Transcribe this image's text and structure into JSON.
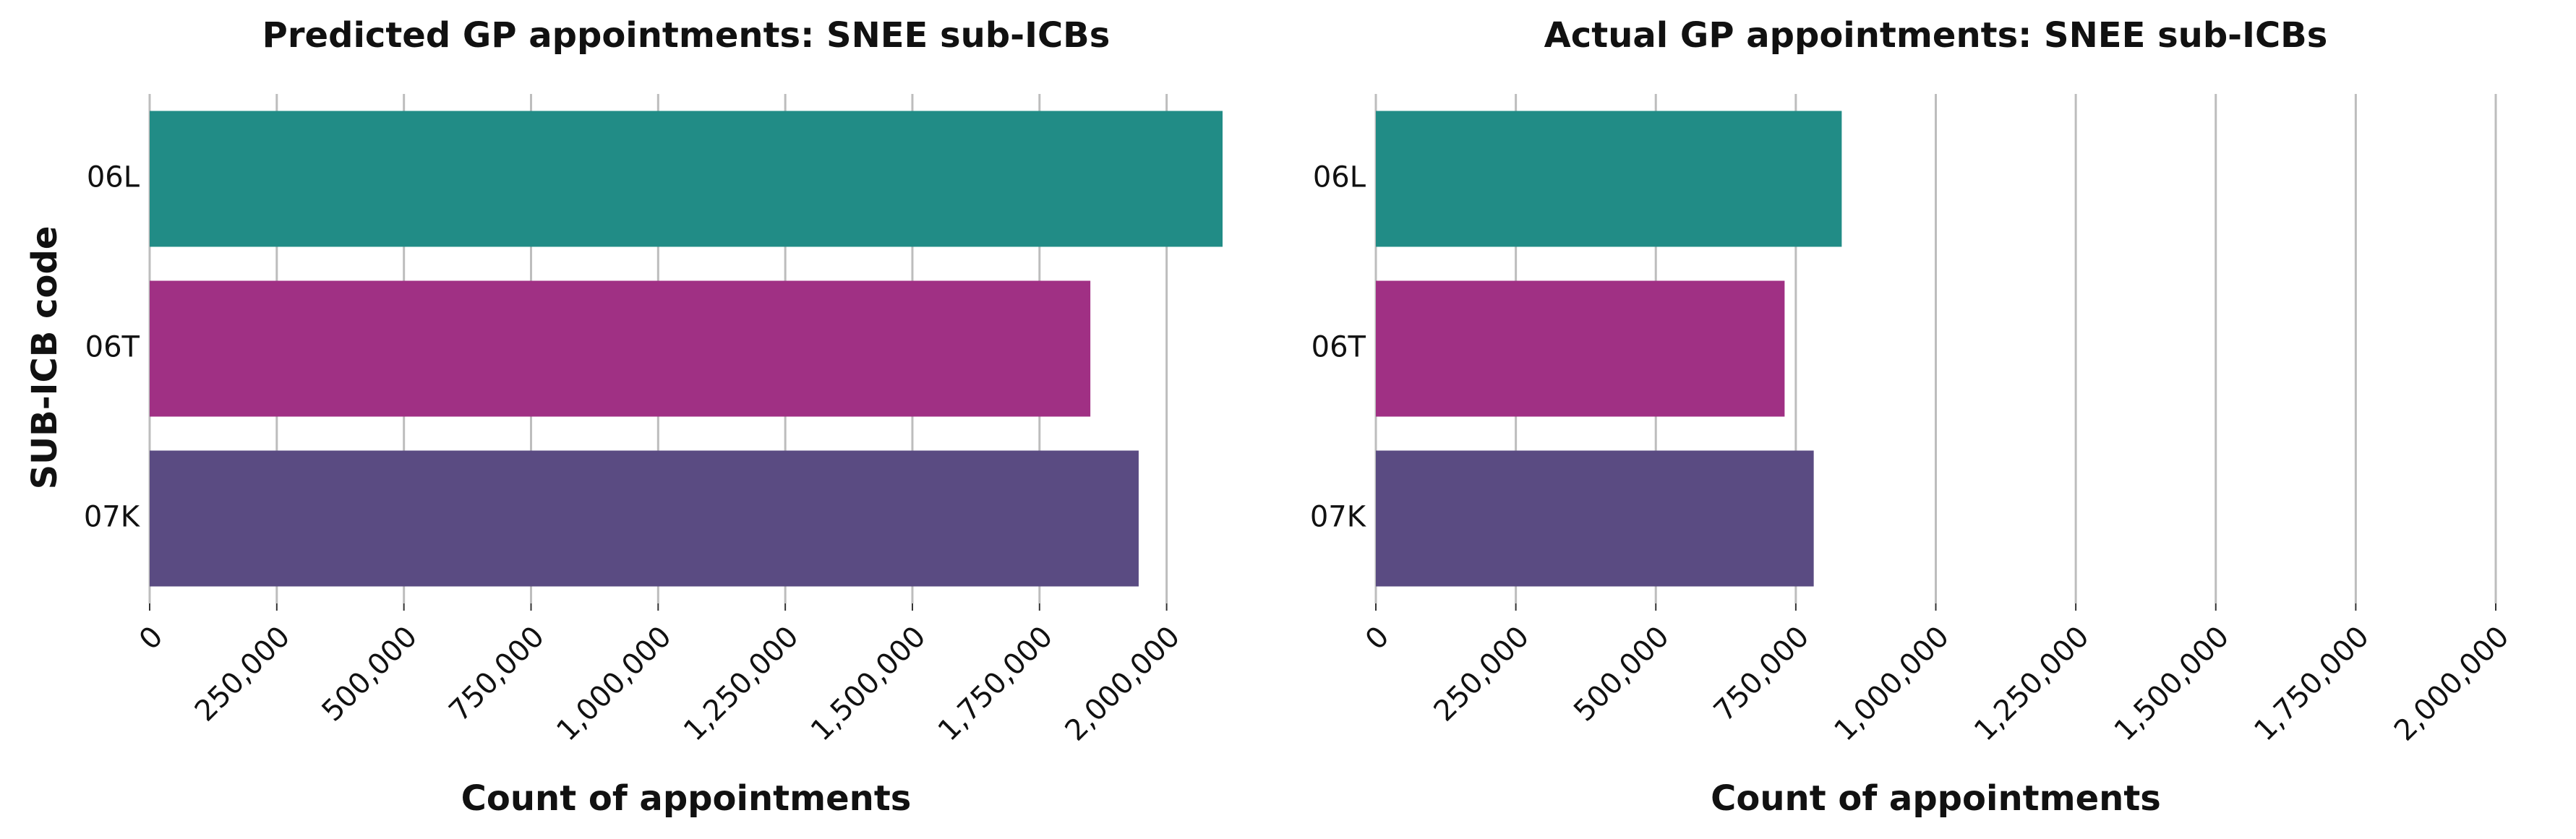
{
  "y_axis_label": "SUB-ICB code",
  "chart_data": [
    {
      "type": "bar",
      "orientation": "horizontal",
      "title": "Predicted GP appointments: SNEE sub-ICBs",
      "xlabel": "Count of appointments",
      "ylabel": "SUB-ICB code",
      "categories": [
        "06L",
        "06T",
        "07K"
      ],
      "values": [
        2110000,
        1850000,
        1945000
      ],
      "colors": [
        "#218c86",
        "#a03084",
        "#5a4b82"
      ],
      "xlim": [
        0,
        2110000
      ],
      "xticks": [
        0,
        250000,
        500000,
        750000,
        1000000,
        1250000,
        1500000,
        1750000,
        2000000
      ],
      "xtick_labels": [
        "0",
        "250,000",
        "500,000",
        "750,000",
        "1,000,000",
        "1,250,000",
        "1,500,000",
        "1,750,000",
        "2,000,000"
      ],
      "grid": "vertical",
      "legend": "none"
    },
    {
      "type": "bar",
      "orientation": "horizontal",
      "title": "Actual GP appointments: SNEE sub-ICBs",
      "xlabel": "Count of appointments",
      "ylabel": "",
      "categories": [
        "06L",
        "06T",
        "07K"
      ],
      "values": [
        832000,
        730000,
        782000
      ],
      "colors": [
        "#218c86",
        "#a03084",
        "#5a4b82"
      ],
      "xlim": [
        0,
        2000000
      ],
      "xticks": [
        0,
        250000,
        500000,
        750000,
        1000000,
        1250000,
        1500000,
        1750000,
        2000000
      ],
      "xtick_labels": [
        "0",
        "250,000",
        "500,000",
        "750,000",
        "1,000,000",
        "1,250,000",
        "1,500,000",
        "1,750,000",
        "2,000,000"
      ],
      "grid": "vertical",
      "legend": "none"
    }
  ]
}
